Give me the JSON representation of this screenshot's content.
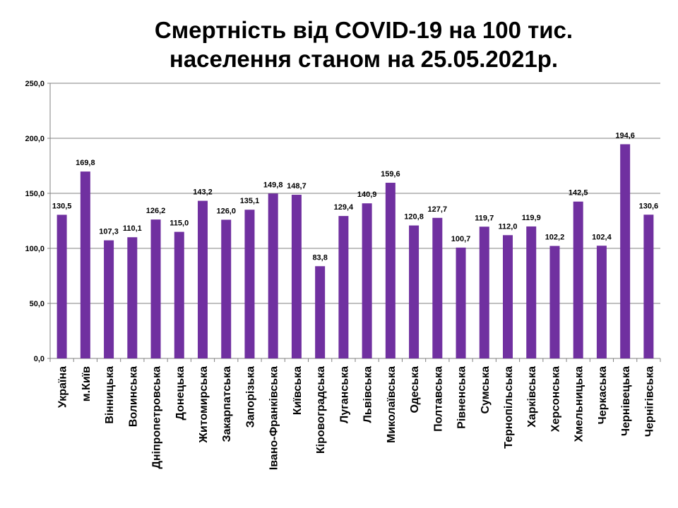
{
  "chart_data": {
    "type": "bar",
    "title_lines": [
      "Смертність від COVID-19 на 100 тис.",
      "населення станом на 25.05.2021р."
    ],
    "xlabel": "",
    "ylabel": "",
    "ylim": [
      0,
      250
    ],
    "y_ticks": [
      "0,0",
      "50,0",
      "100,0",
      "150,0",
      "200,0",
      "250,0"
    ],
    "y_tick_values": [
      0,
      50,
      100,
      150,
      200,
      250
    ],
    "grid": true,
    "legend": "none",
    "bar_color": "#7030a0",
    "categories": [
      "Україна",
      "м.Київ",
      "Вінницька",
      "Волинська",
      "Дніпропетровська",
      "Донецька",
      "Житомирська",
      "Закарпатська",
      "Запорізька",
      "Івано-Франківська",
      "Київська",
      "Кіровоградська",
      "Луганська",
      "Львівська",
      "Миколаївська",
      "Одеська",
      "Полтавська",
      "Рівненська",
      "Сумська",
      "Тернопільська",
      "Харківська",
      "Херсонська",
      "Хмельницька",
      "Черкаська",
      "Чернівецька",
      "Чернігівська"
    ],
    "values": [
      130.5,
      169.8,
      107.3,
      110.1,
      126.2,
      115.0,
      143.2,
      126.0,
      135.1,
      149.8,
      148.7,
      83.8,
      129.4,
      140.9,
      159.6,
      120.8,
      127.7,
      100.7,
      119.7,
      112.0,
      119.9,
      102.2,
      142.5,
      102.4,
      194.6,
      130.6
    ],
    "data_labels": [
      "130,5",
      "169,8",
      "107,3",
      "110,1",
      "126,2",
      "115,0",
      "143,2",
      "126,0",
      "135,1",
      "149,8",
      "148,7",
      "83,8",
      "129,4",
      "140,9",
      "159,6",
      "120,8",
      "127,7",
      "100,7",
      "119,7",
      "112,0",
      "119,9",
      "102,2",
      "142,5",
      "102,4",
      "194,6",
      "130,6"
    ]
  }
}
